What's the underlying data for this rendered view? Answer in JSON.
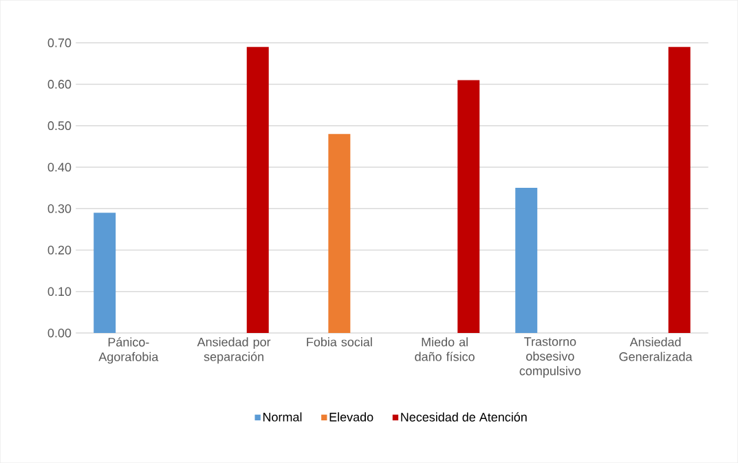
{
  "chart_data": {
    "type": "bar",
    "categories": [
      "Pánico-Agorafobia",
      "Ansiedad por separación",
      "Fobia social",
      "Miedo al daño físico",
      "Trastorno obsesivo compulsivo",
      "Ansiedad Generalizada"
    ],
    "series": [
      {
        "name": "Normal",
        "color": "#5b9bd5",
        "values": [
          0.29,
          0,
          0,
          0,
          0.35,
          0
        ]
      },
      {
        "name": "Elevado",
        "color": "#ed7d31",
        "values": [
          0,
          0,
          0.48,
          0,
          0,
          0
        ]
      },
      {
        "name": "Necesidad de Atención",
        "color": "#c00000",
        "values": [
          0,
          0.69,
          0,
          0.61,
          0,
          0.69
        ]
      }
    ],
    "ylim": [
      0,
      0.7
    ],
    "yticks": [
      {
        "value": 0,
        "label": "0.00"
      },
      {
        "value": 0.1,
        "label": "0.10"
      },
      {
        "value": 0.2,
        "label": "0.20"
      },
      {
        "value": 0.3,
        "label": "0.30"
      },
      {
        "value": 0.4,
        "label": "0.40"
      },
      {
        "value": 0.5,
        "label": "0.50"
      },
      {
        "value": 0.6,
        "label": "0.60"
      },
      {
        "value": 0.7,
        "label": "0.70"
      }
    ],
    "grid": "y",
    "legend": "bottom"
  }
}
